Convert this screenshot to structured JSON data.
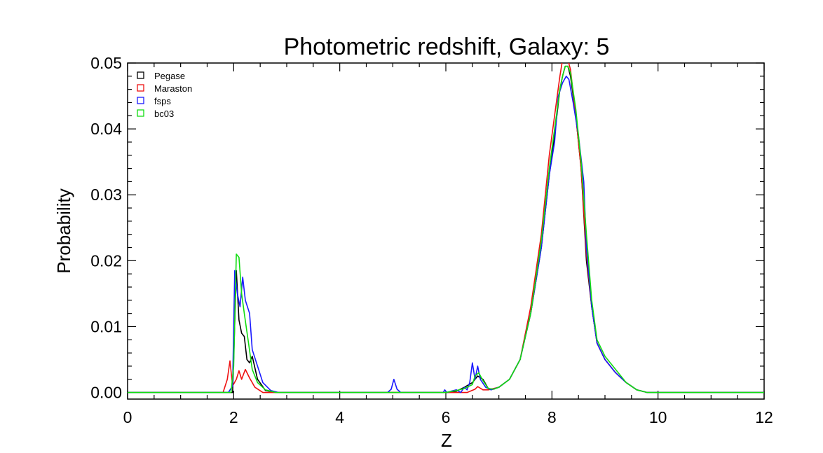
{
  "chart_data": {
    "type": "line",
    "title": "Photometric redshift, Galaxy: 5",
    "xlabel": "Z",
    "ylabel": "Probability",
    "xlim": [
      0,
      12
    ],
    "ylim": [
      -0.001,
      0.05
    ],
    "xticks": [
      0,
      2,
      4,
      6,
      8,
      10,
      12
    ],
    "xtick_labels": [
      "0",
      "2",
      "4",
      "6",
      "8",
      "10",
      "12"
    ],
    "yticks": [
      0.0,
      0.01,
      0.02,
      0.03,
      0.04,
      0.05
    ],
    "ytick_labels": [
      "0.00",
      "0.01",
      "0.02",
      "0.03",
      "0.04",
      "0.05"
    ],
    "legend_position": "top-left",
    "grid": false,
    "series": [
      {
        "name": "Pegase",
        "color": "#000000",
        "points": [
          [
            0,
            0
          ],
          [
            1.9,
            0
          ],
          [
            1.98,
            0
          ],
          [
            2.05,
            0.0185
          ],
          [
            2.1,
            0.011
          ],
          [
            2.15,
            0.009
          ],
          [
            2.2,
            0.0085
          ],
          [
            2.25,
            0.005
          ],
          [
            2.3,
            0.0045
          ],
          [
            2.35,
            0.0055
          ],
          [
            2.45,
            0.002
          ],
          [
            2.6,
            0.0003
          ],
          [
            2.8,
            0
          ],
          [
            6.0,
            0
          ],
          [
            6.2,
            0.0002
          ],
          [
            6.35,
            0.0008
          ],
          [
            6.5,
            0.0015
          ],
          [
            6.6,
            0.0025
          ],
          [
            6.7,
            0.002
          ],
          [
            6.8,
            0.0006
          ],
          [
            6.9,
            0.0005
          ],
          [
            7.0,
            0.0008
          ],
          [
            7.2,
            0.002
          ],
          [
            7.4,
            0.005
          ],
          [
            7.6,
            0.012
          ],
          [
            7.8,
            0.022
          ],
          [
            7.95,
            0.033
          ],
          [
            8.05,
            0.039
          ],
          [
            8.15,
            0.046
          ],
          [
            8.2,
            0.048
          ],
          [
            8.25,
            0.0495
          ],
          [
            8.3,
            0.0495
          ],
          [
            8.35,
            0.048
          ],
          [
            8.45,
            0.042
          ],
          [
            8.55,
            0.034
          ],
          [
            8.65,
            0.02
          ],
          [
            8.75,
            0.013
          ],
          [
            8.85,
            0.0075
          ],
          [
            9.0,
            0.005
          ],
          [
            9.2,
            0.003
          ],
          [
            9.4,
            0.0015
          ],
          [
            9.6,
            0.0004
          ],
          [
            9.8,
            0
          ],
          [
            12,
            0
          ]
        ]
      },
      {
        "name": "Maraston",
        "color": "#ee1111",
        "points": [
          [
            0,
            0
          ],
          [
            1.8,
            0
          ],
          [
            1.88,
            0.002
          ],
          [
            1.93,
            0.0048
          ],
          [
            1.98,
            0.001
          ],
          [
            2.05,
            0.002
          ],
          [
            2.1,
            0.0033
          ],
          [
            2.15,
            0.002
          ],
          [
            2.22,
            0.0035
          ],
          [
            2.3,
            0.0022
          ],
          [
            2.4,
            0.0008
          ],
          [
            2.55,
            0
          ],
          [
            6.0,
            0
          ],
          [
            6.4,
            0
          ],
          [
            6.55,
            0.0005
          ],
          [
            6.6,
            0.0009
          ],
          [
            6.7,
            0.0004
          ],
          [
            6.8,
            0.0004
          ],
          [
            7.0,
            0.0008
          ],
          [
            7.2,
            0.002
          ],
          [
            7.4,
            0.005
          ],
          [
            7.6,
            0.013
          ],
          [
            7.8,
            0.024
          ],
          [
            7.95,
            0.036
          ],
          [
            8.05,
            0.042
          ],
          [
            8.15,
            0.048
          ],
          [
            8.2,
            0.0505
          ],
          [
            8.3,
            0.0505
          ],
          [
            8.35,
            0.049
          ],
          [
            8.45,
            0.042
          ],
          [
            8.55,
            0.034
          ],
          [
            8.65,
            0.021
          ],
          [
            8.75,
            0.013
          ],
          [
            8.85,
            0.0075
          ],
          [
            9.0,
            0.005
          ],
          [
            9.2,
            0.003
          ],
          [
            9.4,
            0.0015
          ],
          [
            9.6,
            0.0004
          ],
          [
            9.8,
            0
          ],
          [
            12,
            0
          ]
        ]
      },
      {
        "name": "fsps",
        "color": "#1a1aff",
        "points": [
          [
            0,
            0
          ],
          [
            1.9,
            0
          ],
          [
            1.98,
            0.001
          ],
          [
            2.02,
            0.0185
          ],
          [
            2.07,
            0.015
          ],
          [
            2.12,
            0.013
          ],
          [
            2.17,
            0.0175
          ],
          [
            2.22,
            0.014
          ],
          [
            2.3,
            0.012
          ],
          [
            2.35,
            0.0065
          ],
          [
            2.45,
            0.004
          ],
          [
            2.55,
            0.0015
          ],
          [
            2.7,
            0.0003
          ],
          [
            2.85,
            0
          ],
          [
            4.9,
            0
          ],
          [
            4.97,
            0.0005
          ],
          [
            5.02,
            0.002
          ],
          [
            5.08,
            0.0005
          ],
          [
            5.15,
            0
          ],
          [
            5.95,
            0
          ],
          [
            5.98,
            0.0004
          ],
          [
            6.02,
            0
          ],
          [
            6.1,
            0.0002
          ],
          [
            6.2,
            0.0004
          ],
          [
            6.28,
            0
          ],
          [
            6.35,
            0.0008
          ],
          [
            6.4,
            0.0004
          ],
          [
            6.45,
            0.0015
          ],
          [
            6.5,
            0.0045
          ],
          [
            6.55,
            0.002
          ],
          [
            6.6,
            0.004
          ],
          [
            6.65,
            0.002
          ],
          [
            6.75,
            0.0008
          ],
          [
            6.85,
            0.0004
          ],
          [
            7.0,
            0.0008
          ],
          [
            7.2,
            0.002
          ],
          [
            7.4,
            0.005
          ],
          [
            7.6,
            0.012
          ],
          [
            7.8,
            0.022
          ],
          [
            7.95,
            0.033
          ],
          [
            8.05,
            0.038
          ],
          [
            8.12,
            0.045
          ],
          [
            8.2,
            0.047
          ],
          [
            8.27,
            0.048
          ],
          [
            8.32,
            0.0475
          ],
          [
            8.4,
            0.044
          ],
          [
            8.5,
            0.039
          ],
          [
            8.6,
            0.032
          ],
          [
            8.65,
            0.022
          ],
          [
            8.75,
            0.013
          ],
          [
            8.85,
            0.0075
          ],
          [
            9.0,
            0.005
          ],
          [
            9.2,
            0.003
          ],
          [
            9.4,
            0.0015
          ],
          [
            9.6,
            0.0004
          ],
          [
            9.8,
            0
          ],
          [
            12,
            0
          ]
        ]
      },
      {
        "name": "bc03",
        "color": "#11dd11",
        "points": [
          [
            0,
            0
          ],
          [
            1.95,
            0
          ],
          [
            2.0,
            0.004
          ],
          [
            2.05,
            0.021
          ],
          [
            2.1,
            0.0205
          ],
          [
            2.15,
            0.015
          ],
          [
            2.2,
            0.012
          ],
          [
            2.28,
            0.0075
          ],
          [
            2.35,
            0.0035
          ],
          [
            2.45,
            0.0015
          ],
          [
            2.6,
            0.0004
          ],
          [
            2.8,
            0
          ],
          [
            6.0,
            0
          ],
          [
            6.2,
            0.0003
          ],
          [
            6.35,
            0.0006
          ],
          [
            6.5,
            0.0012
          ],
          [
            6.55,
            0.0025
          ],
          [
            6.62,
            0.003
          ],
          [
            6.7,
            0.0018
          ],
          [
            6.8,
            0.0006
          ],
          [
            6.9,
            0.0005
          ],
          [
            7.0,
            0.0008
          ],
          [
            7.2,
            0.002
          ],
          [
            7.4,
            0.005
          ],
          [
            7.6,
            0.012
          ],
          [
            7.8,
            0.023
          ],
          [
            7.95,
            0.034
          ],
          [
            8.05,
            0.04
          ],
          [
            8.15,
            0.046
          ],
          [
            8.2,
            0.048
          ],
          [
            8.25,
            0.0495
          ],
          [
            8.3,
            0.0495
          ],
          [
            8.35,
            0.0485
          ],
          [
            8.45,
            0.043
          ],
          [
            8.55,
            0.035
          ],
          [
            8.65,
            0.024
          ],
          [
            8.75,
            0.014
          ],
          [
            8.85,
            0.008
          ],
          [
            9.0,
            0.0055
          ],
          [
            9.2,
            0.0035
          ],
          [
            9.4,
            0.0015
          ],
          [
            9.6,
            0.0004
          ],
          [
            9.8,
            0
          ],
          [
            12,
            0
          ]
        ]
      }
    ]
  }
}
